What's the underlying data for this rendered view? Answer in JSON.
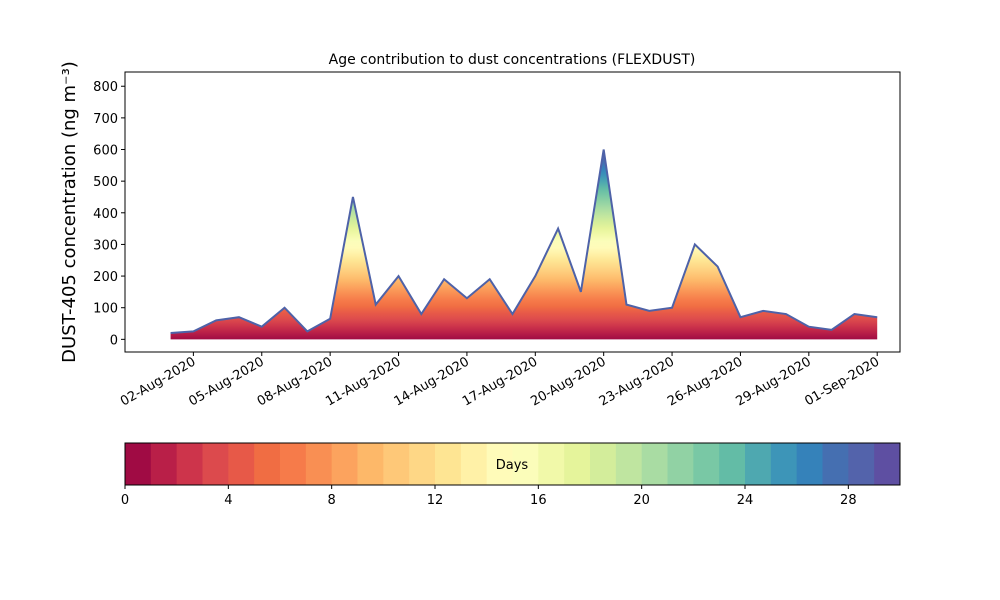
{
  "chart_data": {
    "type": "area",
    "title": "Age contribution to dust concentrations (FLEXDUST)",
    "ylabel": "DUST-405 concentration (ng m⁻³)",
    "x": [
      "2020-08-01",
      "2020-08-02",
      "2020-08-03",
      "2020-08-04",
      "2020-08-05",
      "2020-08-06",
      "2020-08-07",
      "2020-08-08",
      "2020-08-09",
      "2020-08-10",
      "2020-08-11",
      "2020-08-12",
      "2020-08-13",
      "2020-08-14",
      "2020-08-15",
      "2020-08-16",
      "2020-08-17",
      "2020-08-18",
      "2020-08-19",
      "2020-08-20",
      "2020-08-21",
      "2020-08-22",
      "2020-08-23",
      "2020-08-24",
      "2020-08-25",
      "2020-08-26",
      "2020-08-27",
      "2020-08-28",
      "2020-08-29",
      "2020-08-30",
      "2020-08-31",
      "2020-09-01"
    ],
    "series": [
      {
        "color": "#4e62a8",
        "values": [
          20,
          25,
          60,
          70,
          40,
          100,
          25,
          65,
          450,
          110,
          200,
          80,
          190,
          130,
          190,
          80,
          200,
          350,
          150,
          600,
          110,
          90,
          100,
          300,
          230,
          70,
          90,
          80,
          40,
          30,
          80,
          70
        ]
      }
    ],
    "xlim": [
      "2020-07-30",
      "2020-09-02"
    ],
    "xticks": [
      {
        "value": "2020-08-02",
        "label": "02-Aug-2020"
      },
      {
        "value": "2020-08-05",
        "label": "05-Aug-2020"
      },
      {
        "value": "2020-08-08",
        "label": "08-Aug-2020"
      },
      {
        "value": "2020-08-11",
        "label": "11-Aug-2020"
      },
      {
        "value": "2020-08-14",
        "label": "14-Aug-2020"
      },
      {
        "value": "2020-08-17",
        "label": "17-Aug-2020"
      },
      {
        "value": "2020-08-20",
        "label": "20-Aug-2020"
      },
      {
        "value": "2020-08-23",
        "label": "23-Aug-2020"
      },
      {
        "value": "2020-08-26",
        "label": "26-Aug-2020"
      },
      {
        "value": "2020-08-29",
        "label": "29-Aug-2020"
      },
      {
        "value": "2020-09-01",
        "label": "01-Sep-2020"
      }
    ],
    "ylim": [
      -40,
      845
    ],
    "yticks": [
      0,
      100,
      200,
      300,
      400,
      500,
      600,
      700,
      800
    ],
    "colorbar": {
      "label": "Days",
      "lim": [
        0,
        30
      ],
      "ticks": [
        0,
        4,
        8,
        12,
        16,
        20,
        24,
        28
      ],
      "colors": [
        "#a00b44",
        "#b91f48",
        "#cd344b",
        "#dc4a4d",
        "#e75948",
        "#f06d43",
        "#f67b4a",
        "#f98f53",
        "#fca35e",
        "#fdb869",
        "#fec878",
        "#fed786",
        "#fee593",
        "#fff1a7",
        "#fffbb9",
        "#fbfdba",
        "#f1f9a9",
        "#e5f49b",
        "#d3ed9b",
        "#bfe5a0",
        "#a9dca3",
        "#91d2a4",
        "#79c8a5",
        "#63bca6",
        "#4ea8b0",
        "#3d95b8",
        "#3582ba",
        "#456fb1",
        "#5363ab",
        "#5e4fa2"
      ]
    }
  }
}
